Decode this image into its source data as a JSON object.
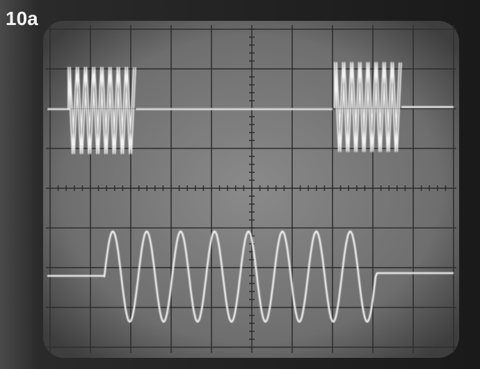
{
  "label": "10a"
}
